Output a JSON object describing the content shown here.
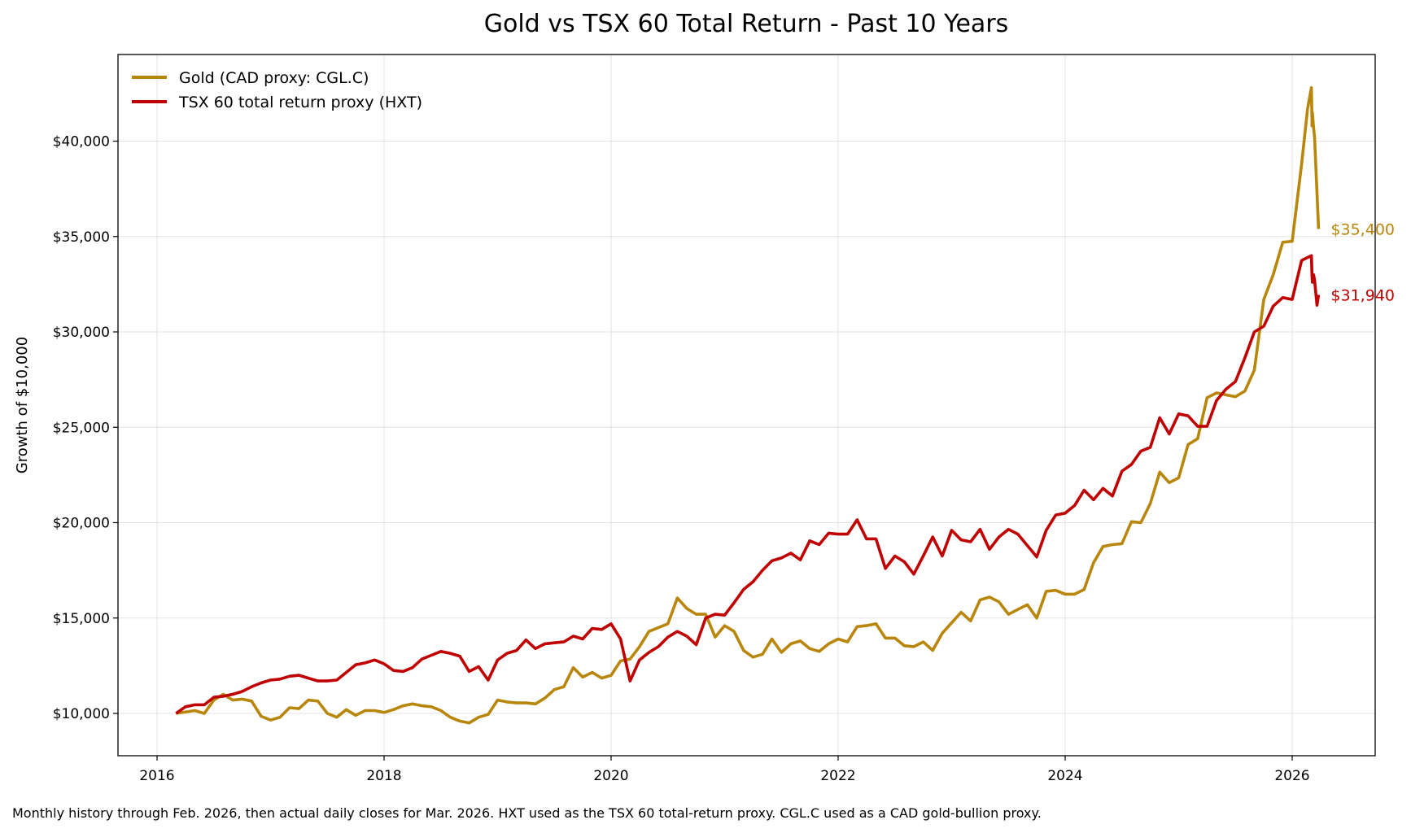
{
  "chart_data": {
    "type": "line",
    "title": "Gold vs TSX 60 Total Return - Past 10 Years",
    "xlabel": "",
    "ylabel": "Growth of $10,000",
    "xlim": [
      "2015-09",
      "2026-08"
    ],
    "ylim": [
      7800,
      44400
    ],
    "x_ticks": [
      "2016",
      "2018",
      "2020",
      "2022",
      "2024",
      "2026"
    ],
    "y_ticks": [
      10000,
      15000,
      20000,
      25000,
      30000,
      35000,
      40000
    ],
    "y_tick_labels": [
      "$10,000",
      "$15,000",
      "$20,000",
      "$25,000",
      "$30,000",
      "$35,000",
      "$40,000"
    ],
    "grid": true,
    "legend_position": "top-left",
    "series": [
      {
        "name": "Gold (CAD proxy: CGL.C)",
        "color": "#B8860B",
        "end_label": "$35,400",
        "points": [
          [
            "2016-03",
            10000
          ],
          [
            "2016-05",
            10150
          ],
          [
            "2016-06",
            10000
          ],
          [
            "2016-07",
            10700
          ],
          [
            "2016-08",
            11000
          ],
          [
            "2016-09",
            10700
          ],
          [
            "2016-10",
            10750
          ],
          [
            "2016-11",
            10650
          ],
          [
            "2016-12",
            9850
          ],
          [
            "2017-01",
            9650
          ],
          [
            "2017-02",
            9800
          ],
          [
            "2017-03",
            10300
          ],
          [
            "2017-04",
            10250
          ],
          [
            "2017-05",
            10700
          ],
          [
            "2017-06",
            10650
          ],
          [
            "2017-07",
            10000
          ],
          [
            "2017-08",
            9800
          ],
          [
            "2017-09",
            10200
          ],
          [
            "2017-10",
            9900
          ],
          [
            "2017-11",
            10150
          ],
          [
            "2017-12",
            10150
          ],
          [
            "2018-01",
            10050
          ],
          [
            "2018-02",
            10200
          ],
          [
            "2018-03",
            10400
          ],
          [
            "2018-04",
            10500
          ],
          [
            "2018-05",
            10400
          ],
          [
            "2018-06",
            10350
          ],
          [
            "2018-07",
            10150
          ],
          [
            "2018-08",
            9800
          ],
          [
            "2018-09",
            9600
          ],
          [
            "2018-10",
            9500
          ],
          [
            "2018-11",
            9800
          ],
          [
            "2018-12",
            9950
          ],
          [
            "2019-01",
            10700
          ],
          [
            "2019-02",
            10600
          ],
          [
            "2019-03",
            10550
          ],
          [
            "2019-04",
            10550
          ],
          [
            "2019-05",
            10500
          ],
          [
            "2019-06",
            10800
          ],
          [
            "2019-07",
            11250
          ],
          [
            "2019-08",
            11400
          ],
          [
            "2019-09",
            12400
          ],
          [
            "2019-10",
            11900
          ],
          [
            "2019-11",
            12150
          ],
          [
            "2019-12",
            11850
          ],
          [
            "2020-01",
            12000
          ],
          [
            "2020-02",
            12750
          ],
          [
            "2020-03",
            12850
          ],
          [
            "2020-04",
            13500
          ],
          [
            "2020-05",
            14300
          ],
          [
            "2020-06",
            14500
          ],
          [
            "2020-07",
            14700
          ],
          [
            "2020-08",
            16050
          ],
          [
            "2020-09",
            15500
          ],
          [
            "2020-10",
            15200
          ],
          [
            "2020-11",
            15200
          ],
          [
            "2020-12",
            14000
          ],
          [
            "2021-01",
            14600
          ],
          [
            "2021-02",
            14300
          ],
          [
            "2021-03",
            13300
          ],
          [
            "2021-04",
            12950
          ],
          [
            "2021-05",
            13100
          ],
          [
            "2021-06",
            13900
          ],
          [
            "2021-07",
            13200
          ],
          [
            "2021-08",
            13650
          ],
          [
            "2021-09",
            13800
          ],
          [
            "2021-10",
            13400
          ],
          [
            "2021-11",
            13250
          ],
          [
            "2021-12",
            13650
          ],
          [
            "2022-01",
            13900
          ],
          [
            "2022-02",
            13750
          ],
          [
            "2022-03",
            14550
          ],
          [
            "2022-04",
            14600
          ],
          [
            "2022-05",
            14700
          ],
          [
            "2022-06",
            13950
          ],
          [
            "2022-07",
            13950
          ],
          [
            "2022-08",
            13550
          ],
          [
            "2022-09",
            13500
          ],
          [
            "2022-10",
            13750
          ],
          [
            "2022-11",
            13300
          ],
          [
            "2022-12",
            14200
          ],
          [
            "2023-01",
            14750
          ],
          [
            "2023-02",
            15300
          ],
          [
            "2023-03",
            14850
          ],
          [
            "2023-04",
            15950
          ],
          [
            "2023-05",
            16100
          ],
          [
            "2023-06",
            15850
          ],
          [
            "2023-07",
            15200
          ],
          [
            "2023-08",
            15450
          ],
          [
            "2023-09",
            15700
          ],
          [
            "2023-10",
            15000
          ],
          [
            "2023-11",
            16400
          ],
          [
            "2023-12",
            16450
          ],
          [
            "2024-01",
            16250
          ],
          [
            "2024-02",
            16250
          ],
          [
            "2024-03",
            16500
          ],
          [
            "2024-04",
            17900
          ],
          [
            "2024-05",
            18750
          ],
          [
            "2024-06",
            18850
          ],
          [
            "2024-07",
            18900
          ],
          [
            "2024-08",
            20050
          ],
          [
            "2024-09",
            20000
          ],
          [
            "2024-10",
            21000
          ],
          [
            "2024-11",
            22650
          ],
          [
            "2024-12",
            22100
          ],
          [
            "2025-01",
            22350
          ],
          [
            "2025-02",
            24100
          ],
          [
            "2025-03",
            24400
          ],
          [
            "2025-04",
            26550
          ],
          [
            "2025-05",
            26800
          ],
          [
            "2025-06",
            26700
          ],
          [
            "2025-07",
            26600
          ],
          [
            "2025-08",
            26900
          ],
          [
            "2025-09",
            28000
          ],
          [
            "2025-10",
            31700
          ],
          [
            "2025-11",
            33000
          ],
          [
            "2025-12",
            34700
          ],
          [
            "2026-01",
            34750
          ],
          [
            "2026-02",
            38800
          ],
          [
            "2026-02-20",
            41700
          ],
          [
            "2026-03-02",
            42800
          ],
          [
            "2026-03-04",
            40800
          ],
          [
            "2026-03-05",
            41500
          ],
          [
            "2026-03-09",
            40700
          ],
          [
            "2026-03-12",
            40200
          ],
          [
            "2026-03-25",
            35400
          ]
        ]
      },
      {
        "name": "TSX 60 total return proxy (HXT)",
        "color": "#C00000",
        "end_label": "$31,940",
        "points": [
          [
            "2016-03",
            10000
          ],
          [
            "2016-04",
            10350
          ],
          [
            "2016-05",
            10450
          ],
          [
            "2016-06",
            10450
          ],
          [
            "2016-07",
            10850
          ],
          [
            "2016-08",
            10900
          ],
          [
            "2016-09",
            11000
          ],
          [
            "2016-10",
            11150
          ],
          [
            "2016-11",
            11400
          ],
          [
            "2016-12",
            11600
          ],
          [
            "2017-01",
            11750
          ],
          [
            "2017-02",
            11800
          ],
          [
            "2017-03",
            11950
          ],
          [
            "2017-04",
            12000
          ],
          [
            "2017-05",
            11850
          ],
          [
            "2017-06",
            11700
          ],
          [
            "2017-07",
            11700
          ],
          [
            "2017-08",
            11750
          ],
          [
            "2017-09",
            12150
          ],
          [
            "2017-10",
            12550
          ],
          [
            "2017-11",
            12650
          ],
          [
            "2017-12",
            12800
          ],
          [
            "2018-01",
            12600
          ],
          [
            "2018-02",
            12250
          ],
          [
            "2018-03",
            12200
          ],
          [
            "2018-04",
            12400
          ],
          [
            "2018-05",
            12850
          ],
          [
            "2018-06",
            13050
          ],
          [
            "2018-07",
            13250
          ],
          [
            "2018-08",
            13150
          ],
          [
            "2018-09",
            13000
          ],
          [
            "2018-10",
            12200
          ],
          [
            "2018-11",
            12450
          ],
          [
            "2018-12",
            11750
          ],
          [
            "2019-01",
            12800
          ],
          [
            "2019-02",
            13150
          ],
          [
            "2019-03",
            13300
          ],
          [
            "2019-04",
            13850
          ],
          [
            "2019-05",
            13400
          ],
          [
            "2019-06",
            13650
          ],
          [
            "2019-07",
            13700
          ],
          [
            "2019-08",
            13750
          ],
          [
            "2019-09",
            14050
          ],
          [
            "2019-10",
            13900
          ],
          [
            "2019-11",
            14450
          ],
          [
            "2019-12",
            14400
          ],
          [
            "2020-01",
            14700
          ],
          [
            "2020-02",
            13900
          ],
          [
            "2020-03",
            11700
          ],
          [
            "2020-04",
            12800
          ],
          [
            "2020-05",
            13200
          ],
          [
            "2020-06",
            13500
          ],
          [
            "2020-07",
            14000
          ],
          [
            "2020-08",
            14300
          ],
          [
            "2020-09",
            14050
          ],
          [
            "2020-10",
            13600
          ],
          [
            "2020-11",
            15000
          ],
          [
            "2020-12",
            15200
          ],
          [
            "2021-01",
            15150
          ],
          [
            "2021-02",
            15800
          ],
          [
            "2021-03",
            16500
          ],
          [
            "2021-04",
            16900
          ],
          [
            "2021-05",
            17500
          ],
          [
            "2021-06",
            18000
          ],
          [
            "2021-07",
            18150
          ],
          [
            "2021-08",
            18400
          ],
          [
            "2021-09",
            18050
          ],
          [
            "2021-10",
            19050
          ],
          [
            "2021-11",
            18850
          ],
          [
            "2021-12",
            19450
          ],
          [
            "2022-01",
            19400
          ],
          [
            "2022-02",
            19400
          ],
          [
            "2022-03",
            20150
          ],
          [
            "2022-04",
            19150
          ],
          [
            "2022-05",
            19150
          ],
          [
            "2022-06",
            17600
          ],
          [
            "2022-07",
            18250
          ],
          [
            "2022-08",
            17950
          ],
          [
            "2022-09",
            17300
          ],
          [
            "2022-10",
            18250
          ],
          [
            "2022-11",
            19250
          ],
          [
            "2022-12",
            18250
          ],
          [
            "2023-01",
            19600
          ],
          [
            "2023-02",
            19100
          ],
          [
            "2023-03",
            19000
          ],
          [
            "2023-04",
            19650
          ],
          [
            "2023-05",
            18600
          ],
          [
            "2023-06",
            19250
          ],
          [
            "2023-07",
            19650
          ],
          [
            "2023-08",
            19400
          ],
          [
            "2023-09",
            18800
          ],
          [
            "2023-10",
            18200
          ],
          [
            "2023-11",
            19600
          ],
          [
            "2023-12",
            20400
          ],
          [
            "2024-01",
            20500
          ],
          [
            "2024-02",
            20900
          ],
          [
            "2024-03",
            21700
          ],
          [
            "2024-04",
            21200
          ],
          [
            "2024-05",
            21800
          ],
          [
            "2024-06",
            21400
          ],
          [
            "2024-07",
            22700
          ],
          [
            "2024-08",
            23050
          ],
          [
            "2024-09",
            23750
          ],
          [
            "2024-10",
            23950
          ],
          [
            "2024-11",
            25500
          ],
          [
            "2024-12",
            24650
          ],
          [
            "2025-01",
            25700
          ],
          [
            "2025-02",
            25600
          ],
          [
            "2025-03",
            25050
          ],
          [
            "2025-04",
            25050
          ],
          [
            "2025-05",
            26400
          ],
          [
            "2025-06",
            27000
          ],
          [
            "2025-07",
            27400
          ],
          [
            "2025-08",
            28650
          ],
          [
            "2025-09",
            30000
          ],
          [
            "2025-10",
            30300
          ],
          [
            "2025-11",
            31350
          ],
          [
            "2025-12",
            31800
          ],
          [
            "2026-01",
            31700
          ],
          [
            "2026-02",
            33750
          ],
          [
            "2026-03-02",
            34000
          ],
          [
            "2026-03-04",
            32900
          ],
          [
            "2026-03-05",
            32600
          ],
          [
            "2026-03-09",
            33000
          ],
          [
            "2026-03-12",
            32700
          ],
          [
            "2026-03-20",
            31400
          ],
          [
            "2026-03-25",
            31940
          ]
        ]
      }
    ]
  },
  "footnote": "Monthly history through Feb. 2026, then actual daily closes for Mar. 2026. HXT used as the TSX 60 total-return proxy. CGL.C used as a CAD gold-bullion proxy."
}
